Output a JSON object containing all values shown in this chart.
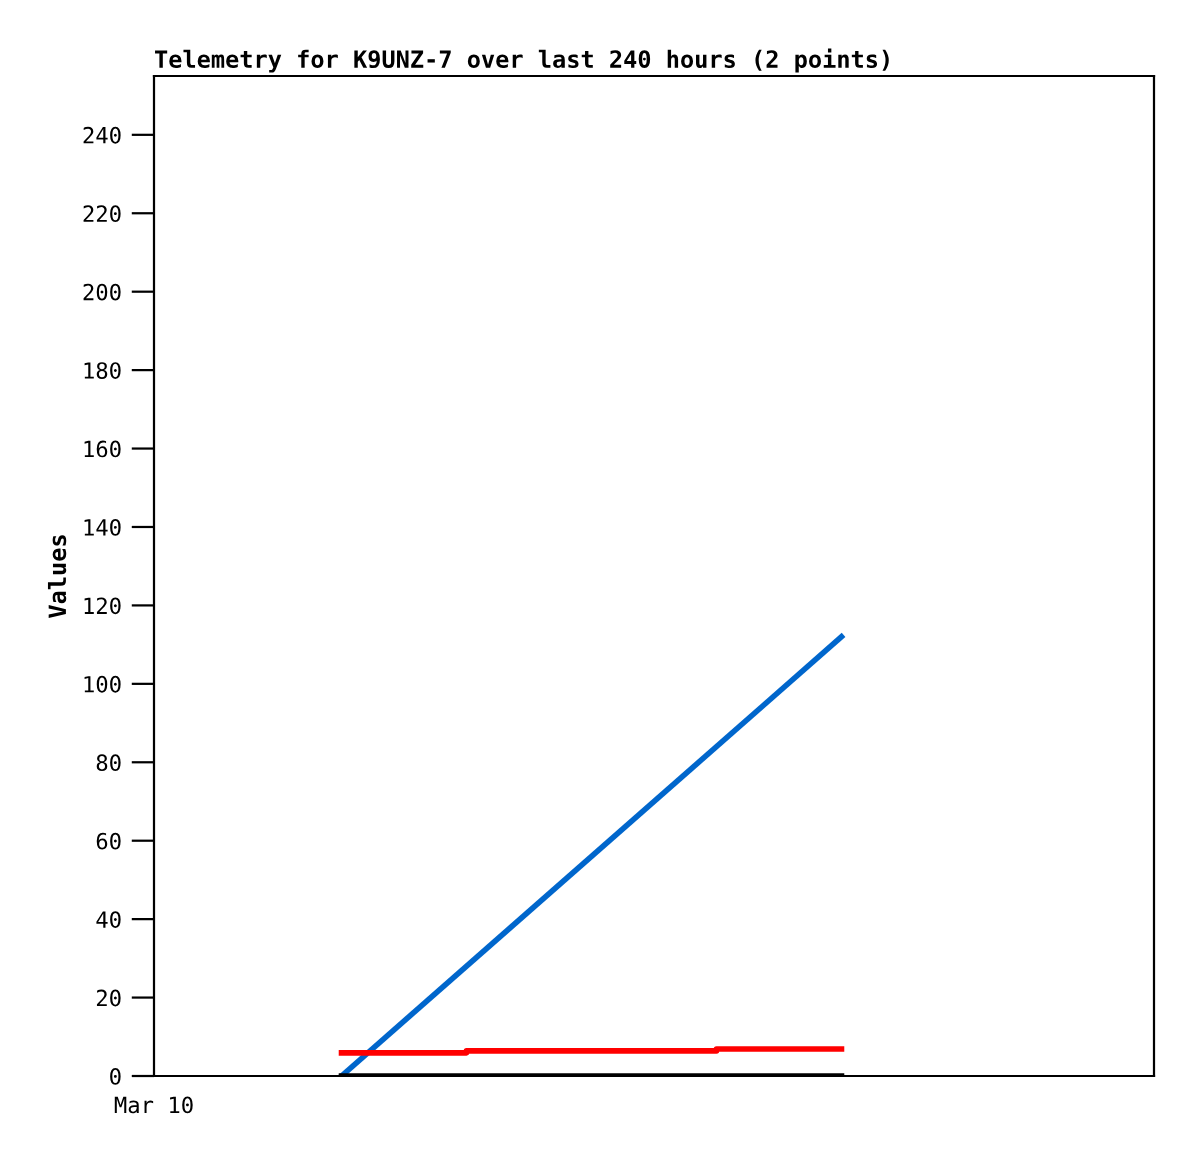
{
  "chart_data": {
    "type": "line",
    "title": "Telemetry for K9UNZ-7 over last 240 hours (2 points)",
    "ylabel": "Values",
    "categories": [
      null,
      null,
      null,
      null,
      null,
      null,
      null,
      null
    ],
    "annotations": [
      "Mar 10"
    ],
    "ylim": [
      0,
      255
    ],
    "yticks": [
      0,
      20,
      40,
      60,
      80,
      100,
      120,
      140,
      160,
      180,
      200,
      220,
      240
    ],
    "grid": false,
    "legend": false,
    "marker": "none",
    "line_style": "solid",
    "series": [
      {
        "color": "#0066cc",
        "values": [
          null,
          0,
          null,
          null,
          null,
          112,
          null,
          null
        ]
      },
      {
        "type": "step",
        "color": "#ff0000",
        "values": [
          null,
          5.9,
          6.4,
          null,
          6.9,
          6.9,
          null,
          null
        ]
      },
      {
        "color": "#000000",
        "values": [
          null,
          0,
          null,
          null,
          null,
          0,
          null,
          null
        ]
      }
    ]
  }
}
